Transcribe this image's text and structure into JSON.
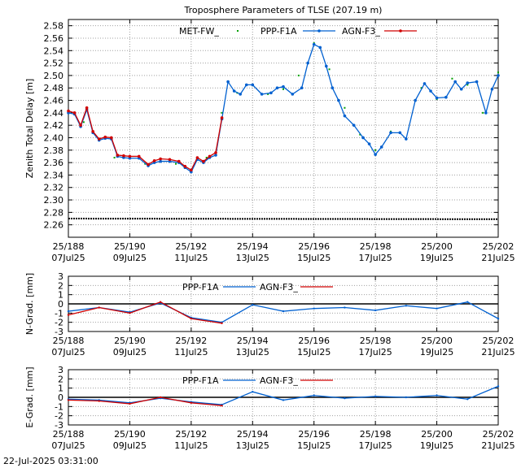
{
  "timestamp": "22-Jul-2025 03:31:00",
  "colors": {
    "met": "#00a000",
    "ppp": "#0060d0",
    "agn": "#d00000",
    "bias": "#000000",
    "grid": "#a0a0a0"
  },
  "chart_data": [
    {
      "type": "line",
      "title": "Troposphere Parameters of TLSE (207.19 m)",
      "xlabel": "",
      "ylabel": "Zenith Total Delay [m]",
      "xlim": [
        188,
        202
      ],
      "ylim": [
        2.24,
        2.59
      ],
      "x_ticks": [
        {
          "v": 188,
          "l1": "25/188",
          "l2": "07Jul25"
        },
        {
          "v": 190,
          "l1": "25/190",
          "l2": "09Jul25"
        },
        {
          "v": 192,
          "l1": "25/192",
          "l2": "11Jul25"
        },
        {
          "v": 194,
          "l1": "25/194",
          "l2": "13Jul25"
        },
        {
          "v": 196,
          "l1": "25/196",
          "l2": "15Jul25"
        },
        {
          "v": 198,
          "l1": "25/198",
          "l2": "17Jul25"
        },
        {
          "v": 200,
          "l1": "25/200",
          "l2": "19Jul25"
        },
        {
          "v": 202,
          "l1": "25/202",
          "l2": "21Jul25"
        }
      ],
      "y_ticks": [
        "2.26",
        "2.28",
        "2.30",
        "2.32",
        "2.34",
        "2.36",
        "2.38",
        "2.40",
        "2.42",
        "2.44",
        "2.46",
        "2.48",
        "2.50",
        "2.52",
        "2.54",
        "2.56",
        "2.58"
      ],
      "grid": true,
      "legend": "top-center",
      "series": [
        {
          "name": "MET-FW_",
          "style": "points",
          "x": [
            188.0,
            188.5,
            189.0,
            189.5,
            190.0,
            190.5,
            191.0,
            191.5,
            192.0,
            192.5,
            193.0,
            193.5,
            194.0,
            194.5,
            195.0,
            195.5,
            196.0,
            196.5,
            197.0,
            197.5,
            198.0,
            198.5,
            199.0,
            199.5,
            200.0,
            200.5,
            201.0,
            201.5,
            202.0
          ],
          "y": [
            2.442,
            2.425,
            2.398,
            2.368,
            2.368,
            2.358,
            2.362,
            2.358,
            2.348,
            2.368,
            2.44,
            2.472,
            2.484,
            2.47,
            2.478,
            2.5,
            2.552,
            2.51,
            2.448,
            2.405,
            2.38,
            2.41,
            2.398,
            2.48,
            2.462,
            2.495,
            2.485,
            2.44,
            2.505
          ]
        },
        {
          "name": "PPP-F1A",
          "style": "line-points",
          "x": [
            188.0,
            188.2,
            188.4,
            188.6,
            188.8,
            189.0,
            189.2,
            189.4,
            189.6,
            189.8,
            190.0,
            190.3,
            190.6,
            190.8,
            191.0,
            191.3,
            191.6,
            191.8,
            192.0,
            192.2,
            192.4,
            192.6,
            192.8,
            193.0,
            193.2,
            193.4,
            193.6,
            193.8,
            194.0,
            194.3,
            194.6,
            194.8,
            195.0,
            195.3,
            195.6,
            195.8,
            196.0,
            196.2,
            196.4,
            196.6,
            196.8,
            197.0,
            197.3,
            197.6,
            197.8,
            198.0,
            198.2,
            198.5,
            198.8,
            199.0,
            199.3,
            199.6,
            199.8,
            200.0,
            200.3,
            200.6,
            200.8,
            201.0,
            201.3,
            201.6,
            201.8,
            202.0
          ],
          "y": [
            2.44,
            2.438,
            2.418,
            2.445,
            2.408,
            2.396,
            2.399,
            2.398,
            2.37,
            2.368,
            2.367,
            2.367,
            2.355,
            2.36,
            2.362,
            2.362,
            2.36,
            2.352,
            2.345,
            2.365,
            2.36,
            2.368,
            2.372,
            2.43,
            2.49,
            2.475,
            2.47,
            2.485,
            2.485,
            2.47,
            2.472,
            2.48,
            2.482,
            2.47,
            2.48,
            2.52,
            2.55,
            2.545,
            2.515,
            2.48,
            2.46,
            2.435,
            2.42,
            2.4,
            2.39,
            2.373,
            2.385,
            2.408,
            2.408,
            2.398,
            2.46,
            2.487,
            2.475,
            2.464,
            2.465,
            2.49,
            2.478,
            2.488,
            2.49,
            2.44,
            2.478,
            2.5
          ]
        },
        {
          "name": "AGN-F3_",
          "style": "line-points",
          "x": [
            188.0,
            188.2,
            188.4,
            188.6,
            188.8,
            189.0,
            189.2,
            189.4,
            189.6,
            189.8,
            190.0,
            190.3,
            190.6,
            190.8,
            191.0,
            191.3,
            191.6,
            191.8,
            192.0,
            192.2,
            192.4,
            192.6,
            192.8,
            193.0
          ],
          "y": [
            2.443,
            2.44,
            2.42,
            2.448,
            2.41,
            2.398,
            2.401,
            2.4,
            2.372,
            2.371,
            2.37,
            2.37,
            2.357,
            2.363,
            2.366,
            2.365,
            2.362,
            2.354,
            2.348,
            2.368,
            2.362,
            2.37,
            2.376,
            2.432
          ]
        },
        {
          "name": "",
          "style": "points",
          "x": [
            188,
            190,
            192,
            194,
            196,
            198,
            200,
            202
          ],
          "y": [
            2.27,
            2.27,
            2.27,
            2.27,
            2.269,
            2.269,
            2.269,
            2.269
          ]
        }
      ]
    },
    {
      "type": "line",
      "title": "",
      "xlabel": "",
      "ylabel": "N-Grad. [mm]",
      "xlim": [
        188,
        202
      ],
      "ylim": [
        -3,
        3
      ],
      "x_ticks": [
        {
          "v": 188,
          "l1": "25/188",
          "l2": "07Jul25"
        },
        {
          "v": 190,
          "l1": "25/190",
          "l2": "09Jul25"
        },
        {
          "v": 192,
          "l1": "25/192",
          "l2": "11Jul25"
        },
        {
          "v": 194,
          "l1": "25/194",
          "l2": "13Jul25"
        },
        {
          "v": 196,
          "l1": "25/196",
          "l2": "15Jul25"
        },
        {
          "v": 198,
          "l1": "25/198",
          "l2": "17Jul25"
        },
        {
          "v": 200,
          "l1": "25/200",
          "l2": "19Jul25"
        },
        {
          "v": 202,
          "l1": "25/202",
          "l2": "21Jul25"
        }
      ],
      "y_ticks": [
        "3",
        "2",
        "1",
        "0",
        "-1",
        "-2",
        "-3"
      ],
      "grid": true,
      "legend": "top-center",
      "series": [
        {
          "name": "PPP-F1A",
          "x": [
            188,
            189,
            190,
            191,
            192,
            193,
            194,
            195,
            196,
            197,
            198,
            199,
            200,
            201,
            202
          ],
          "y": [
            -0.8,
            -0.4,
            -0.9,
            0.1,
            -1.5,
            -2.0,
            -0.1,
            -0.8,
            -0.5,
            -0.4,
            -0.7,
            -0.2,
            -0.5,
            0.2,
            -1.6
          ]
        },
        {
          "name": "AGN-F3_",
          "x": [
            188,
            189,
            190,
            191,
            192,
            193
          ],
          "y": [
            -1.2,
            -0.4,
            -1.0,
            0.2,
            -1.6,
            -2.1
          ]
        }
      ]
    },
    {
      "type": "line",
      "title": "",
      "xlabel": "",
      "ylabel": "E-Grad. [mm]",
      "xlim": [
        188,
        202
      ],
      "ylim": [
        -3,
        3
      ],
      "x_ticks": [
        {
          "v": 188,
          "l1": "25/188",
          "l2": "07Jul25"
        },
        {
          "v": 190,
          "l1": "25/190",
          "l2": "09Jul25"
        },
        {
          "v": 192,
          "l1": "25/192",
          "l2": "11Jul25"
        },
        {
          "v": 194,
          "l1": "25/194",
          "l2": "13Jul25"
        },
        {
          "v": 196,
          "l1": "25/196",
          "l2": "15Jul25"
        },
        {
          "v": 198,
          "l1": "25/198",
          "l2": "17Jul25"
        },
        {
          "v": 200,
          "l1": "25/200",
          "l2": "19Jul25"
        },
        {
          "v": 202,
          "l1": "25/202",
          "l2": "21Jul25"
        }
      ],
      "y_ticks": [
        "3",
        "2",
        "1",
        "0",
        "-1",
        "-2",
        "-3"
      ],
      "grid": true,
      "legend": "top-center",
      "series": [
        {
          "name": "PPP-F1A",
          "x": [
            188,
            189,
            190,
            191,
            192,
            193,
            194,
            195,
            196,
            197,
            198,
            199,
            200,
            201,
            202
          ],
          "y": [
            -0.2,
            -0.3,
            -0.6,
            -0.1,
            -0.5,
            -0.8,
            0.6,
            -0.3,
            0.2,
            -0.1,
            0.1,
            0.0,
            0.2,
            -0.2,
            1.2
          ]
        },
        {
          "name": "AGN-F3_",
          "x": [
            188,
            189,
            190,
            191,
            192,
            193
          ],
          "y": [
            -0.3,
            -0.4,
            -0.7,
            0.0,
            -0.6,
            -0.9
          ]
        }
      ]
    }
  ]
}
